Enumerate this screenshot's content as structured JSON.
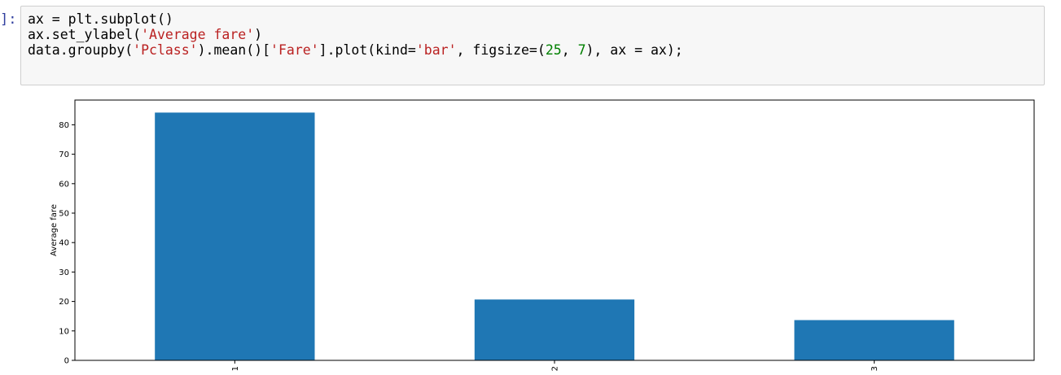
{
  "cell": {
    "prompt": "]:",
    "code_lines": [
      [
        "ax = plt.subplot()"
      ],
      [
        "ax.set_ylabel(",
        {
          "s": "'Average fare'"
        },
        ")"
      ],
      [
        "data.groupby(",
        {
          "s": "'Pclass'"
        },
        ").mean()[",
        {
          "s": "'Fare'"
        },
        "].plot(kind=",
        {
          "s": "'bar'"
        },
        ", figsize=(",
        {
          "n": "25"
        },
        ", ",
        {
          "n": "7"
        },
        "), ax = ax);"
      ]
    ]
  },
  "colors": {
    "bar": "#1f77b4",
    "axis": "#000000"
  },
  "chart_data": {
    "type": "bar",
    "categories": [
      "1",
      "2",
      "3"
    ],
    "values": [
      84.15,
      20.66,
      13.68
    ],
    "xlabel": "",
    "ylabel": "Average fare",
    "ylim": [
      0,
      88.4
    ],
    "yticks": [
      0,
      10,
      20,
      30,
      40,
      50,
      60,
      70,
      80
    ],
    "grid": false,
    "xtick_rotation": 90
  }
}
